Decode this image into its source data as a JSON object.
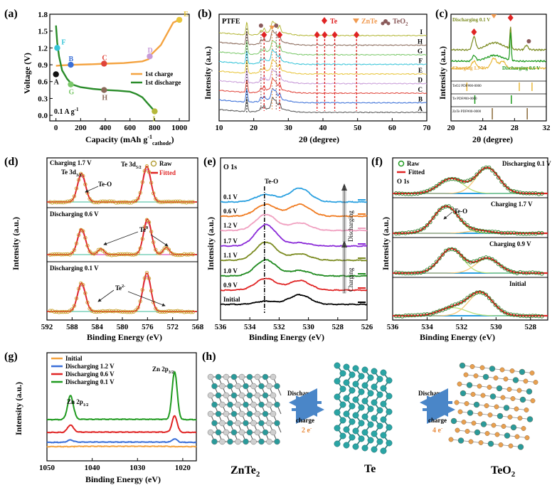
{
  "chart_data": [
    {
      "id": "a",
      "type": "line",
      "panel_label": "(a)",
      "xlabel": "Capacity (mAh g",
      "xlabel_sup": "-1",
      "xlabel_sub": "cathode",
      "xlabel_end": ")",
      "ylabel": "Voltage (V)",
      "xlim": [
        -50,
        1080
      ],
      "ylim": [
        -0.1,
        1.8
      ],
      "xticks": [
        "0",
        "200",
        "400",
        "600",
        "800",
        "1000"
      ],
      "yticks": [
        "0.0",
        "0.3",
        "0.6",
        "0.9",
        "1.2",
        "1.5",
        "1.8"
      ],
      "annotation": "0.1 A g",
      "annotation_sup": "-1",
      "legend": [
        "1st charge",
        "1st discharge"
      ],
      "series": [
        {
          "name": "1st charge",
          "color": "#f4a340",
          "x": [
            0,
            50,
            150,
            300,
            400,
            550,
            700,
            750,
            760,
            780,
            850,
            900,
            950,
            1000
          ],
          "y": [
            0.88,
            0.89,
            0.9,
            0.91,
            0.92,
            0.93,
            0.96,
            1.0,
            1.06,
            1.1,
            1.25,
            1.45,
            1.65,
            1.7
          ]
        },
        {
          "name": "1st discharge",
          "color": "#2a8c2a",
          "x": [
            0,
            10,
            25,
            50,
            90,
            130,
            200,
            300,
            400,
            500,
            600,
            650,
            700,
            740,
            780,
            800
          ],
          "y": [
            1.6,
            1.3,
            1.05,
            0.8,
            0.65,
            0.55,
            0.5,
            0.47,
            0.45,
            0.44,
            0.42,
            0.38,
            0.32,
            0.22,
            0.12,
            0.07
          ]
        }
      ],
      "points": [
        {
          "label": "A",
          "x": 0,
          "y": 0.73,
          "color": "#111111"
        },
        {
          "label": "B",
          "x": 120,
          "y": 0.9,
          "color": "#3a6fd8"
        },
        {
          "label": "C",
          "x": 390,
          "y": 0.92,
          "color": "#e0443a"
        },
        {
          "label": "D",
          "x": 760,
          "y": 1.05,
          "color": "#c79ad8"
        },
        {
          "label": "E",
          "x": 1000,
          "y": 1.7,
          "color": "#e8c53a"
        },
        {
          "label": "F",
          "x": 10,
          "y": 1.2,
          "color": "#36c4d8"
        },
        {
          "label": "G",
          "x": 120,
          "y": 0.55,
          "color": "#7bc86a"
        },
        {
          "label": "H",
          "x": 390,
          "y": 0.45,
          "color": "#8a6a5a"
        },
        {
          "label": "I",
          "x": 800,
          "y": 0.07,
          "color": "#b5b83a"
        }
      ]
    },
    {
      "id": "b",
      "type": "line",
      "panel_label": "(b)",
      "xlabel": "2θ (degree)",
      "ylabel": "Intensity (a.u.)",
      "xlim": [
        10,
        70
      ],
      "xticks": [
        "10",
        "20",
        "30",
        "40",
        "50",
        "60",
        "70"
      ],
      "legend": [
        "Te",
        "ZnTe",
        "TeO",
        "2"
      ],
      "legend_colors": [
        "#e02424",
        "#f09a50",
        "#8a5a5a"
      ],
      "annotation": "PTFE",
      "te_peaks": [
        23,
        27.5,
        38.3,
        40.5,
        43.4,
        49.7
      ],
      "znte_peaks": [
        25.3
      ],
      "teo2_peaks": [
        22.1,
        26.5
      ],
      "traces": [
        {
          "label": "A",
          "color": "#555555"
        },
        {
          "label": "B",
          "color": "#3a6fd8"
        },
        {
          "label": "C",
          "color": "#e0443a"
        },
        {
          "label": "D",
          "color": "#c79ad8"
        },
        {
          "label": "E",
          "color": "#e8c53a"
        },
        {
          "label": "F",
          "color": "#36c4d8"
        },
        {
          "label": "G",
          "color": "#7bc86a"
        },
        {
          "label": "H",
          "color": "#8a6a5a"
        },
        {
          "label": "I",
          "color": "#b5b83a"
        }
      ]
    },
    {
      "id": "c",
      "type": "line",
      "panel_label": "(c)",
      "xlabel": "2θ (degree)",
      "ylabel": "Intensity (a.u.)",
      "xlim": [
        20,
        32
      ],
      "xticks": [
        "20",
        "24",
        "28",
        "32"
      ],
      "trace_labels": [
        "Discharging 0.1 V",
        "Charging 1.7 V",
        "Discharging 0.6 V"
      ],
      "ref_labels": [
        "TeO2 PDF#00-0000",
        "Te PDF#00-0000",
        "ZnTe PDF#00-0000"
      ]
    },
    {
      "id": "d",
      "type": "line",
      "panel_label": "(d)",
      "xlabel": "Binding Energy (eV)",
      "ylabel": "Intensity (a.u.)",
      "xlim": [
        592,
        568
      ],
      "xticks": [
        "592",
        "588",
        "584",
        "580",
        "576",
        "572",
        "568"
      ],
      "legend": [
        "Raw",
        "Fitted"
      ],
      "subpanels": [
        {
          "title": "Charging 1.7 V",
          "annotations": [
            "Te 3d",
            "3/2",
            "Te 3d",
            "5/2",
            "Te-O"
          ]
        },
        {
          "title": "Discharging 0.6 V",
          "annotations": [
            "Te",
            "0"
          ]
        },
        {
          "title": "Discharging 0.1 V",
          "annotations": [
            "Te",
            "2-"
          ]
        }
      ]
    },
    {
      "id": "e",
      "type": "line",
      "panel_label": "(e)",
      "title": "O 1s",
      "xlabel": "Binding Energy (eV)",
      "ylabel": "Intensity (a.u.)",
      "xlim": [
        536,
        526
      ],
      "xticks": [
        "536",
        "534",
        "532",
        "530",
        "528",
        "526"
      ],
      "annotation": "Te-O",
      "arrows": [
        "Charging",
        "Discharging"
      ],
      "traces": [
        {
          "label": "Initial",
          "color": "#000000"
        },
        {
          "label": "0.9 V",
          "color": "#e02424"
        },
        {
          "label": "1.0 V",
          "color": "#1f8a1f"
        },
        {
          "label": "1.1 V",
          "color": "#7a8a1f"
        },
        {
          "label": "1.7 V",
          "color": "#8a2ad8"
        },
        {
          "label": "1.2 V",
          "color": "#f0a0c0"
        },
        {
          "label": "0.6 V",
          "color": "#f07a1f"
        },
        {
          "label": "0.1 V",
          "color": "#2aa0e0"
        }
      ]
    },
    {
      "id": "f",
      "type": "line",
      "panel_label": "(f)",
      "xlabel": "Binding Energy (eV)",
      "ylabel": "Intensity (a.u.)",
      "xlim": [
        536,
        527
      ],
      "xticks": [
        "536",
        "534",
        "532",
        "530",
        "528"
      ],
      "legend": [
        "Raw",
        "Fitted"
      ],
      "annotation": "O 1s",
      "subpanels": [
        {
          "title": "Discharging 0.1 V"
        },
        {
          "title": "Charging 1.7 V",
          "annotation": "Te-O"
        },
        {
          "title": "Charging 0.9 V"
        },
        {
          "title": "Initial"
        }
      ]
    },
    {
      "id": "g",
      "type": "line",
      "panel_label": "(g)",
      "xlabel": "Binding Energy (eV)",
      "ylabel": "Intensity (a.u.)",
      "xlim": [
        1050,
        1017
      ],
      "xticks": [
        "1050",
        "1040",
        "1030",
        "1020"
      ],
      "annotations": [
        "Zn 2p",
        "1/2",
        "Zn 2p",
        "3/2"
      ],
      "traces": [
        {
          "label": "Initial",
          "color": "#f4a340"
        },
        {
          "label": "Discharging 1.2 V",
          "color": "#3a6fd8"
        },
        {
          "label": "Discharging 0.6 V",
          "color": "#e02424"
        },
        {
          "label": "Discharging 0.1 V",
          "color": "#1f9a1f"
        }
      ]
    }
  ],
  "diagram_h": {
    "panel_label": "(h)",
    "labels": [
      "ZnTe",
      "2",
      "Te",
      "TeO",
      "2"
    ],
    "arrow_left": {
      "top": "Discharge",
      "bottom": "charge",
      "electrons": "2 e",
      "electrons_sup": "-"
    },
    "arrow_right": {
      "top": "Discharge",
      "bottom": "charge",
      "electrons": "4 e",
      "electrons_sup": "-"
    }
  }
}
